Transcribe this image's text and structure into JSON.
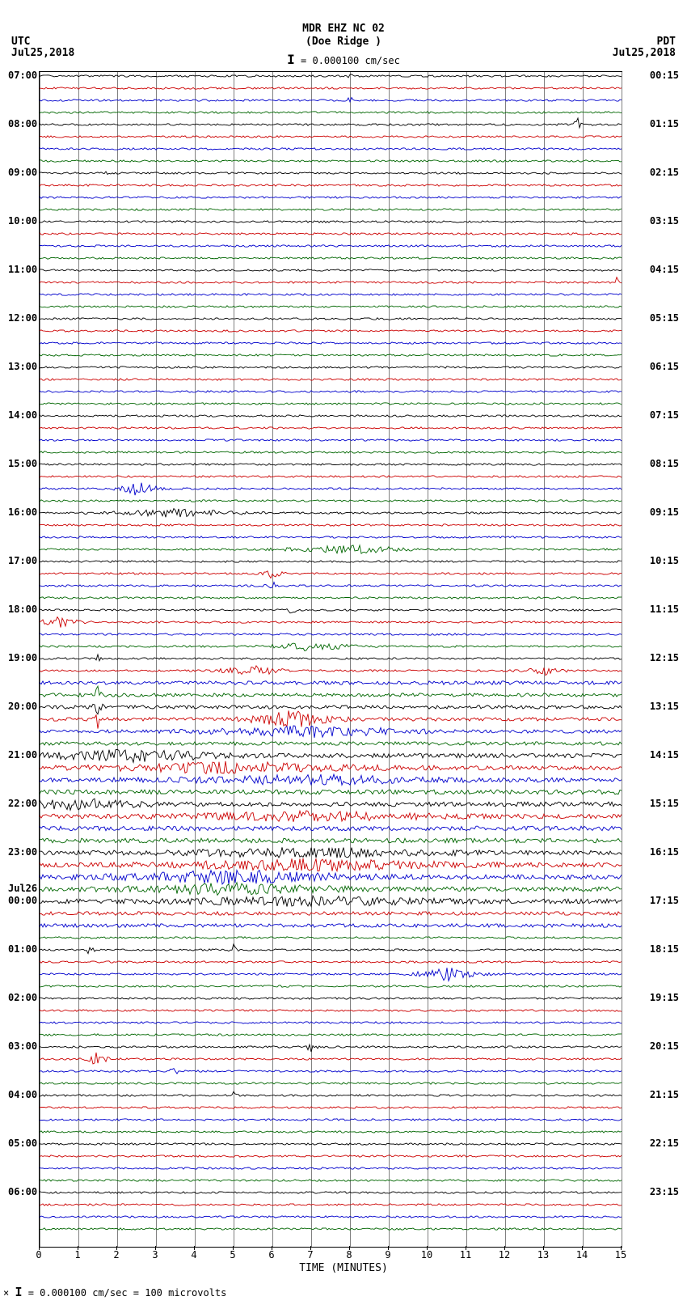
{
  "header": {
    "title": "MDR EHZ NC 02",
    "subtitle": "(Doe Ridge )",
    "scale_text": "= 0.000100 cm/sec",
    "scale_bar": "I"
  },
  "timezones": {
    "left": "UTC",
    "left_date": "Jul25,2018",
    "right": "PDT",
    "right_date": "Jul25,2018"
  },
  "chart": {
    "type": "seismogram",
    "x_min": 0,
    "x_max": 15,
    "x_tick_step": 1,
    "x_label": "TIME (MINUTES)",
    "x_ticks": [
      0,
      1,
      2,
      3,
      4,
      5,
      6,
      7,
      8,
      9,
      10,
      11,
      12,
      13,
      14,
      15
    ],
    "trace_colors": [
      "#000000",
      "#cc0000",
      "#0000cc",
      "#006600"
    ],
    "grid_color": "#808080",
    "background": "#ffffff",
    "num_traces": 96,
    "row_spacing": 15,
    "left_labels": [
      {
        "trace": 0,
        "text": "07:00"
      },
      {
        "trace": 4,
        "text": "08:00"
      },
      {
        "trace": 8,
        "text": "09:00"
      },
      {
        "trace": 12,
        "text": "10:00"
      },
      {
        "trace": 16,
        "text": "11:00"
      },
      {
        "trace": 20,
        "text": "12:00"
      },
      {
        "trace": 24,
        "text": "13:00"
      },
      {
        "trace": 28,
        "text": "14:00"
      },
      {
        "trace": 32,
        "text": "15:00"
      },
      {
        "trace": 36,
        "text": "16:00"
      },
      {
        "trace": 40,
        "text": "17:00"
      },
      {
        "trace": 44,
        "text": "18:00"
      },
      {
        "trace": 48,
        "text": "19:00"
      },
      {
        "trace": 52,
        "text": "20:00"
      },
      {
        "trace": 56,
        "text": "21:00"
      },
      {
        "trace": 60,
        "text": "22:00"
      },
      {
        "trace": 64,
        "text": "23:00"
      },
      {
        "trace": 68,
        "text": "00:00"
      },
      {
        "trace": 72,
        "text": "01:00"
      },
      {
        "trace": 76,
        "text": "02:00"
      },
      {
        "trace": 80,
        "text": "03:00"
      },
      {
        "trace": 84,
        "text": "04:00"
      },
      {
        "trace": 88,
        "text": "05:00"
      },
      {
        "trace": 92,
        "text": "06:00"
      }
    ],
    "day_label": {
      "trace": 67,
      "text": "Jul26"
    },
    "right_labels": [
      {
        "trace": 0,
        "text": "00:15"
      },
      {
        "trace": 4,
        "text": "01:15"
      },
      {
        "trace": 8,
        "text": "02:15"
      },
      {
        "trace": 12,
        "text": "03:15"
      },
      {
        "trace": 16,
        "text": "04:15"
      },
      {
        "trace": 20,
        "text": "05:15"
      },
      {
        "trace": 24,
        "text": "06:15"
      },
      {
        "trace": 28,
        "text": "07:15"
      },
      {
        "trace": 32,
        "text": "08:15"
      },
      {
        "trace": 36,
        "text": "09:15"
      },
      {
        "trace": 40,
        "text": "10:15"
      },
      {
        "trace": 44,
        "text": "11:15"
      },
      {
        "trace": 48,
        "text": "12:15"
      },
      {
        "trace": 52,
        "text": "13:15"
      },
      {
        "trace": 56,
        "text": "14:15"
      },
      {
        "trace": 60,
        "text": "15:15"
      },
      {
        "trace": 64,
        "text": "16:15"
      },
      {
        "trace": 68,
        "text": "17:15"
      },
      {
        "trace": 72,
        "text": "18:15"
      },
      {
        "trace": 76,
        "text": "19:15"
      },
      {
        "trace": 80,
        "text": "20:15"
      },
      {
        "trace": 84,
        "text": "21:15"
      },
      {
        "trace": 88,
        "text": "22:15"
      },
      {
        "trace": 92,
        "text": "23:15"
      }
    ],
    "events": [
      {
        "trace": 0,
        "x": 8.0,
        "amp": 10,
        "width": 0.1
      },
      {
        "trace": 2,
        "x": 8.0,
        "amp": 8,
        "width": 0.1
      },
      {
        "trace": 4,
        "x": 13.9,
        "amp": 12,
        "width": 0.2
      },
      {
        "trace": 8,
        "x": 1.7,
        "amp": 6,
        "width": 0.1
      },
      {
        "trace": 17,
        "x": 14.9,
        "amp": 10,
        "width": 0.1
      },
      {
        "trace": 20,
        "x": 1.7,
        "amp": 7,
        "width": 0.05
      },
      {
        "trace": 34,
        "x": 2.5,
        "amp": 8,
        "width": 1.0
      },
      {
        "trace": 36,
        "x": 3.5,
        "amp": 5,
        "width": 3.0
      },
      {
        "trace": 39,
        "x": 8.0,
        "amp": 5,
        "width": 3.0
      },
      {
        "trace": 41,
        "x": 6.0,
        "amp": 6,
        "width": 0.5
      },
      {
        "trace": 42,
        "x": 6.0,
        "amp": 5,
        "width": 0.3
      },
      {
        "trace": 44,
        "x": 6.5,
        "amp": 5,
        "width": 0.2
      },
      {
        "trace": 45,
        "x": 0.5,
        "amp": 6,
        "width": 1.0
      },
      {
        "trace": 47,
        "x": 7.0,
        "amp": 5,
        "width": 2.0
      },
      {
        "trace": 48,
        "x": 1.5,
        "amp": 10,
        "width": 0.1
      },
      {
        "trace": 49,
        "x": 5.5,
        "amp": 6,
        "width": 1.5
      },
      {
        "trace": 49,
        "x": 13.0,
        "amp": 5,
        "width": 1.0
      },
      {
        "trace": 51,
        "x": 1.5,
        "amp": 14,
        "width": 0.15
      },
      {
        "trace": 52,
        "x": 1.5,
        "amp": 12,
        "width": 0.2
      },
      {
        "trace": 53,
        "x": 1.5,
        "amp": 10,
        "width": 0.15
      },
      {
        "trace": 53,
        "x": 6.5,
        "amp": 10,
        "width": 2.0
      },
      {
        "trace": 54,
        "x": 7.0,
        "amp": 6,
        "width": 5.0
      },
      {
        "trace": 56,
        "x": 2.5,
        "amp": 7,
        "width": 4.0
      },
      {
        "trace": 57,
        "x": 5.0,
        "amp": 6,
        "width": 6.0
      },
      {
        "trace": 58,
        "x": 7.0,
        "amp": 5,
        "width": 6.0
      },
      {
        "trace": 60,
        "x": 1.0,
        "amp": 6,
        "width": 3.0
      },
      {
        "trace": 61,
        "x": 7.0,
        "amp": 5,
        "width": 6.0
      },
      {
        "trace": 64,
        "x": 7.0,
        "amp": 5,
        "width": 7.0
      },
      {
        "trace": 65,
        "x": 7.0,
        "amp": 6,
        "width": 7.0
      },
      {
        "trace": 66,
        "x": 5.0,
        "amp": 7,
        "width": 6.0
      },
      {
        "trace": 67,
        "x": 5.0,
        "amp": 6,
        "width": 5.0
      },
      {
        "trace": 68,
        "x": 7.0,
        "amp": 5,
        "width": 6.0
      },
      {
        "trace": 72,
        "x": 1.3,
        "amp": 6,
        "width": 0.2
      },
      {
        "trace": 72,
        "x": 5.0,
        "amp": 6,
        "width": 0.2
      },
      {
        "trace": 74,
        "x": 10.5,
        "amp": 8,
        "width": 1.5
      },
      {
        "trace": 80,
        "x": 7.0,
        "amp": 5,
        "width": 0.3
      },
      {
        "trace": 81,
        "x": 1.5,
        "amp": 10,
        "width": 0.5
      },
      {
        "trace": 82,
        "x": 3.5,
        "amp": 5,
        "width": 0.3
      },
      {
        "trace": 84,
        "x": 5.0,
        "amp": 7,
        "width": 0.1
      }
    ]
  },
  "footer": {
    "text": "= 0.000100 cm/sec =    100 microvolts",
    "scale_bar": "I",
    "prefix": "×"
  }
}
